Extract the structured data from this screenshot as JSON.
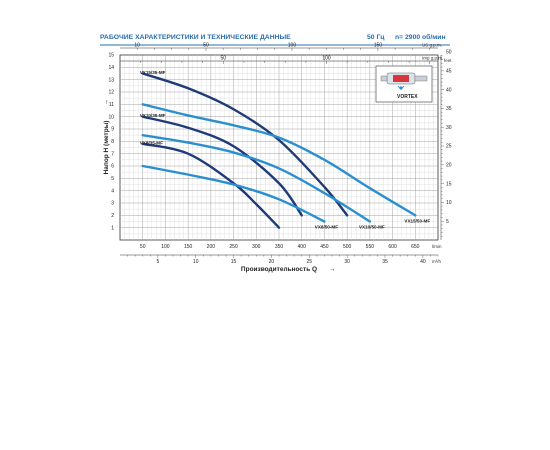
{
  "header": {
    "title": "РАБОЧИЕ ХАРАКТЕРИСТИКИ И ТЕХНИЧЕСКИЕ ДАННЫЕ",
    "freq": "50 Гц",
    "speed": "n= 2900 об/мин"
  },
  "inset": {
    "label": "VORTEX"
  },
  "chart_data": {
    "type": "line",
    "xlabel": "Производительность Q",
    "ylabel": "Напор H (метры)",
    "xlim": [
      0,
      700
    ],
    "ylim": [
      0,
      15
    ],
    "x_unit": "l/min",
    "x_ticks": [
      50,
      100,
      150,
      200,
      250,
      300,
      350,
      400,
      450,
      500,
      550,
      600,
      650
    ],
    "y_ticks": [
      1,
      2,
      3,
      4,
      5,
      6,
      7,
      8,
      9,
      10,
      11,
      12,
      13,
      14,
      15
    ],
    "top_axis_1": {
      "unit": "US g.p.m.",
      "ticks": [
        10,
        50,
        100,
        150
      ]
    },
    "top_axis_2": {
      "unit": "Imp g.p.m.",
      "ticks": [
        50,
        100
      ]
    },
    "right_axis": {
      "unit": "feet",
      "ticks": [
        5,
        10,
        15,
        20,
        25,
        30,
        35,
        40,
        45,
        50
      ]
    },
    "bottom_axis_2": {
      "unit": "m³/h",
      "ticks": [
        5,
        10,
        15,
        20,
        25,
        30,
        35,
        40
      ]
    },
    "grid": true,
    "series": [
      {
        "name": "VX15/35-MF",
        "color": "#1f3a78",
        "x": [
          50,
          150,
          250,
          350,
          450,
          500
        ],
        "y": [
          13.5,
          12.3,
          10.6,
          8.1,
          4.3,
          2.0
        ]
      },
      {
        "name": "VX10/35-MF",
        "color": "#1f3a78",
        "x": [
          50,
          150,
          250,
          350,
          400
        ],
        "y": [
          10.0,
          9.1,
          7.6,
          4.6,
          2.0
        ]
      },
      {
        "name": "VX8/35-MF",
        "color": "#1f3a78",
        "x": [
          50,
          150,
          250,
          300,
          350
        ],
        "y": [
          7.8,
          7.0,
          4.6,
          2.9,
          1.0
        ]
      },
      {
        "name": "VX15/50-MF",
        "color": "#2a8fd0",
        "x": [
          50,
          150,
          250,
          350,
          450,
          550,
          650
        ],
        "y": [
          11.0,
          10.1,
          9.3,
          8.3,
          6.5,
          4.2,
          2.0
        ]
      },
      {
        "name": "VX10/50-MF",
        "color": "#2a8fd0",
        "x": [
          50,
          150,
          250,
          350,
          450,
          550
        ],
        "y": [
          8.5,
          7.9,
          7.1,
          5.8,
          3.8,
          1.5
        ]
      },
      {
        "name": "VX8/50-MF",
        "color": "#2a8fd0",
        "x": [
          50,
          150,
          250,
          350,
          450
        ],
        "y": [
          6.0,
          5.3,
          4.5,
          3.3,
          1.5
        ]
      }
    ]
  }
}
